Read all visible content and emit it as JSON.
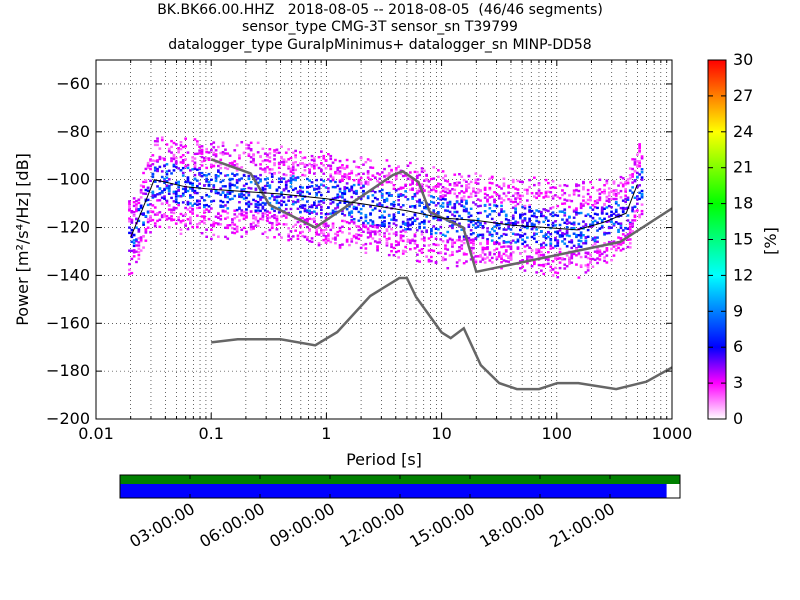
{
  "title": {
    "line1": "BK.BK66.00.HHZ   2018-08-05 -- 2018-08-05  (46/46 segments)",
    "line2": "sensor_type CMG-3T sensor_sn T39799",
    "line3": "datalogger_type GuralpMinimus+ datalogger_sn MINP-DD58"
  },
  "chart_data": {
    "type": "heatmap",
    "xlabel": "Period [s]",
    "ylabel": "Power [m²/s⁴/Hz] [dB]",
    "x_scale": "log",
    "xlim": [
      0.01,
      1000
    ],
    "ylim": [
      -200,
      -50
    ],
    "x_ticks": [
      0.01,
      0.1,
      1,
      10,
      100,
      1000
    ],
    "x_tick_labels": [
      "0.01",
      "0.1",
      "1",
      "10",
      "100",
      "1000"
    ],
    "y_ticks": [
      -200,
      -180,
      -160,
      -140,
      -120,
      -100,
      -80,
      -60
    ],
    "y_tick_labels": [
      "−200",
      "−180",
      "−160",
      "−140",
      "−120",
      "−100",
      "−80",
      "−60"
    ],
    "grid": "dotted",
    "colorbar": {
      "label": "[%]",
      "range": [
        0,
        30
      ],
      "ticks": [
        0,
        3,
        6,
        9,
        12,
        15,
        18,
        21,
        24,
        27,
        30
      ],
      "colormap": "pqlx",
      "colors": [
        "#ffffff",
        "#ff00ff",
        "#0000ff",
        "#00ffff",
        "#00ff00",
        "#ffff00",
        "#ff0000"
      ]
    },
    "nlnm": {
      "name": "",
      "period": [
        0.1,
        0.17,
        0.4,
        0.8,
        1.24,
        2.4,
        4.3,
        5.0,
        6.0,
        10.0,
        12.0,
        15.6,
        21.9,
        31.6,
        45.0,
        70.0,
        101.0,
        154.0,
        328.0,
        600.0,
        1000.0
      ],
      "power": [
        -168,
        -166.7,
        -166.7,
        -169.2,
        -163.7,
        -148.6,
        -141.1,
        -141.1,
        -149.0,
        -163.8,
        -166.2,
        -162.1,
        -177.5,
        -185.0,
        -187.5,
        -187.5,
        -185.0,
        -185.0,
        -187.5,
        -184.4,
        -178.5
      ]
    },
    "nhnm": {
      "name": "",
      "period": [
        0.1,
        0.22,
        0.32,
        0.8,
        3.8,
        4.6,
        6.3,
        7.9,
        15.4,
        20.0,
        354.8,
        1000.0
      ],
      "power": [
        -91.5,
        -97.4,
        -110.5,
        -120.0,
        -98.0,
        -96.5,
        -101.0,
        -113.5,
        -120.0,
        -138.5,
        -126.0,
        -112.0
      ]
    },
    "mode_line": {
      "period": [
        0.02,
        0.025,
        0.032,
        0.04,
        0.06,
        0.1,
        0.2,
        0.4,
        1,
        2,
        5,
        10,
        20,
        40,
        80,
        150,
        250,
        400,
        500
      ],
      "power": [
        -124,
        -113,
        -100,
        -101,
        -103,
        -104,
        -105,
        -106,
        -108,
        -110,
        -113,
        -116,
        -117,
        -119,
        -120,
        -121,
        -118,
        -114,
        -102
      ]
    },
    "timeline": {
      "time_ticks": [
        "03:00:00",
        "06:00:00",
        "09:00:00",
        "12:00:00",
        "15:00:00",
        "18:00:00",
        "21:00:00"
      ],
      "data_coverage_fraction": 0.976,
      "gap_coverage_fraction": 1.0,
      "data_color": "#0000ff",
      "gap_color": "#008000"
    }
  }
}
